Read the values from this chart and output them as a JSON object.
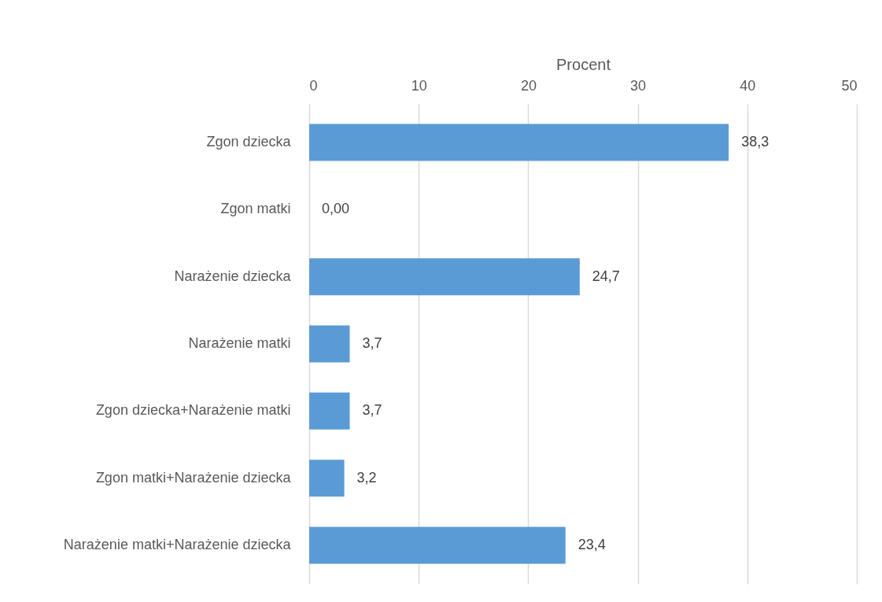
{
  "chart_data": {
    "type": "bar",
    "orientation": "horizontal",
    "xlabel": "Procent",
    "categories": [
      "Zgon dziecka",
      "Zgon matki",
      "Narażenie dziecka",
      "Narażenie matki",
      "Zgon dziecka+Narażenie matki",
      "Zgon matki+Narażenie dziecka",
      "Narażenie matki+Narażenie dziecka"
    ],
    "values": [
      38.3,
      0.0,
      24.7,
      3.7,
      3.7,
      3.2,
      23.4
    ],
    "value_labels": [
      "38,3",
      "0,00",
      "24,7",
      "3,7",
      "3,7",
      "3,2",
      "23,4"
    ],
    "color": "#5b9bd5",
    "xlim": [
      0,
      50
    ],
    "xticks": [
      0,
      10,
      20,
      30,
      40,
      50
    ],
    "grid": "x"
  }
}
